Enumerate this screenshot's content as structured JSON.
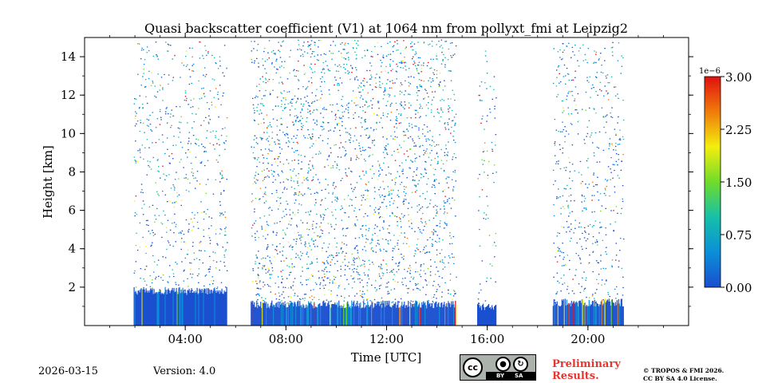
{
  "chart_data": {
    "type": "heatmap",
    "title": "Quasi backscatter coefficient (V1) at 1064 nm from pollyxt_fmi at Leipzig2",
    "xlabel": "Time [UTC]",
    "ylabel": "Height [km]",
    "xlim": [
      0,
      24
    ],
    "ylim": [
      0,
      15
    ],
    "xticks": [
      4,
      8,
      12,
      16,
      20
    ],
    "xtick_labels": [
      "04:00",
      "08:00",
      "12:00",
      "16:00",
      "20:00"
    ],
    "yticks": [
      2,
      4,
      6,
      8,
      10,
      12,
      14
    ],
    "ytick_labels": [
      "2",
      "4",
      "6",
      "8",
      "10",
      "12",
      "14"
    ],
    "colorbar": {
      "label_exponent": "1e−6",
      "min": 0.0,
      "max": 3.0,
      "ticks": [
        0.0,
        0.75,
        1.5,
        2.25,
        3.0
      ],
      "tick_labels": [
        "0.00",
        "0.75",
        "1.50",
        "2.25",
        "3.00"
      ],
      "colormap": [
        "#1a4fcf",
        "#0a8fd8",
        "#16c0a8",
        "#6fdc2a",
        "#f3ee0e",
        "#f07b0a",
        "#e01010"
      ]
    },
    "data_segments": [
      {
        "start": 1.95,
        "end": 5.65,
        "top_km": 14.8,
        "density": 0.09,
        "ground_top_km": 1.8,
        "hot_fraction": 0.02
      },
      {
        "start": 6.6,
        "end": 14.75,
        "top_km": 14.9,
        "density": 0.16,
        "ground_top_km": 1.1,
        "hot_fraction": 0.18
      },
      {
        "start": 15.6,
        "end": 16.35,
        "top_km": 14.5,
        "density": 0.06,
        "ground_top_km": 1.0,
        "hot_fraction": 0.05
      },
      {
        "start": 18.6,
        "end": 21.4,
        "top_km": 14.8,
        "density": 0.1,
        "ground_top_km": 1.2,
        "hot_fraction": 0.3
      }
    ]
  },
  "footer": {
    "date": "2026-03-15",
    "version": "Version: 4.0",
    "preliminary": [
      "Preliminary",
      "Results."
    ],
    "copyright": [
      "© TROPOS & FMI 2026.",
      "CC BY SA 4.0 License."
    ],
    "license_badge": {
      "cc": "cc",
      "by": "BY",
      "sa": "SA"
    }
  }
}
